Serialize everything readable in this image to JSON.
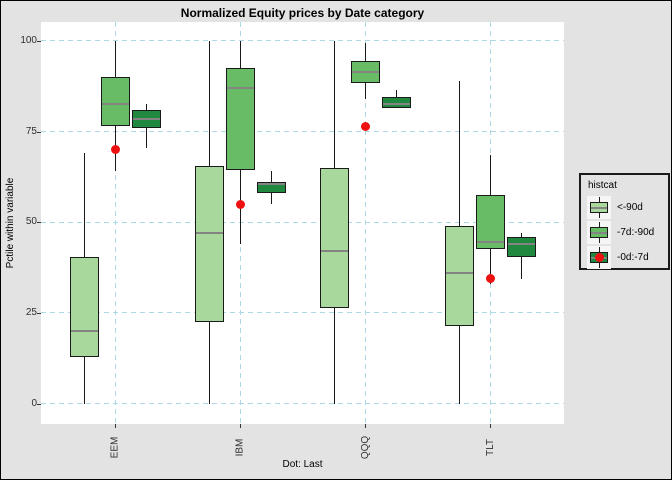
{
  "window": {
    "background": "#e3e3e3",
    "panel_background": "#ffffff",
    "grid_color": "#add8e6",
    "box_border_color": "#1a1a1a",
    "median_color": "#848484"
  },
  "chart_data": {
    "type": "boxplot",
    "title": "Normalized Equity prices by Date category",
    "ylabel": "Pctile within variable",
    "xlabel": "Dot: Last",
    "categories": [
      "EEM",
      "IBM",
      "QQQ",
      "TLT"
    ],
    "yticks": [
      0,
      25,
      50,
      75,
      100
    ],
    "ylim": [
      -5.6,
      105.2
    ],
    "grid": {
      "style": "dashed",
      "horizontal_at": [
        0,
        25,
        50,
        75,
        100
      ],
      "vertical_at_each_category": true
    },
    "legend": {
      "title": "histcat",
      "position": "right",
      "entries": [
        {
          "label": "<-90d",
          "fill": "#a8d89c",
          "dot": false
        },
        {
          "label": "-7d:-90d",
          "fill": "#69bc66",
          "dot": false
        },
        {
          "label": "-0d:-7d",
          "fill": "#218840",
          "dot": true
        }
      ]
    },
    "series": [
      {
        "name": "<-90d",
        "fill": "#a8d89c",
        "boxes": [
          {
            "category": "EEM",
            "whisker_low": 0,
            "q1": 13,
            "median": 20,
            "q3": 40.5,
            "whisker_high": 69
          },
          {
            "category": "IBM",
            "whisker_low": 0,
            "q1": 22.5,
            "median": 47,
            "q3": 65.5,
            "whisker_high": 100
          },
          {
            "category": "QQQ",
            "whisker_low": 0,
            "q1": 26.5,
            "median": 42,
            "q3": 65,
            "whisker_high": 100
          },
          {
            "category": "TLT",
            "whisker_low": 0,
            "q1": 21.5,
            "median": 36,
            "q3": 49,
            "whisker_high": 89
          }
        ]
      },
      {
        "name": "-7d:-90d",
        "fill": "#69bc66",
        "boxes": [
          {
            "category": "EEM",
            "whisker_low": 64,
            "q1": 76.5,
            "median": 82.5,
            "q3": 90,
            "whisker_high": 100
          },
          {
            "category": "IBM",
            "whisker_low": 44,
            "q1": 64.5,
            "median": 87,
            "q3": 92.5,
            "whisker_high": 100
          },
          {
            "category": "QQQ",
            "whisker_low": 84,
            "q1": 88.5,
            "median": 91.5,
            "q3": 94.5,
            "whisker_high": 99.5
          },
          {
            "category": "TLT",
            "whisker_low": 33,
            "q1": 42.5,
            "median": 44.5,
            "q3": 57.5,
            "whisker_high": 68.5
          }
        ]
      },
      {
        "name": "-0d:-7d",
        "fill": "#218840",
        "boxes": [
          {
            "category": "EEM",
            "whisker_low": 70.5,
            "q1": 76,
            "median": 78.5,
            "q3": 81,
            "whisker_high": 82.5
          },
          {
            "category": "IBM",
            "whisker_low": 55,
            "q1": 58,
            "median": 60.5,
            "q3": 61,
            "whisker_high": 64
          },
          {
            "category": "QQQ",
            "whisker_low": 81.5,
            "q1": 81.5,
            "median": 82.5,
            "q3": 84.5,
            "whisker_high": 86.5
          },
          {
            "category": "TLT",
            "whisker_low": 34.5,
            "q1": 40.5,
            "median": 44,
            "q3": 46,
            "whisker_high": 47
          }
        ]
      }
    ],
    "dots": {
      "name": "Last",
      "color": "#ed1111",
      "values": [
        {
          "category": "EEM",
          "value": 70
        },
        {
          "category": "IBM",
          "value": 55
        },
        {
          "category": "QQQ",
          "value": 76.5
        },
        {
          "category": "TLT",
          "value": 34.5
        }
      ]
    }
  }
}
